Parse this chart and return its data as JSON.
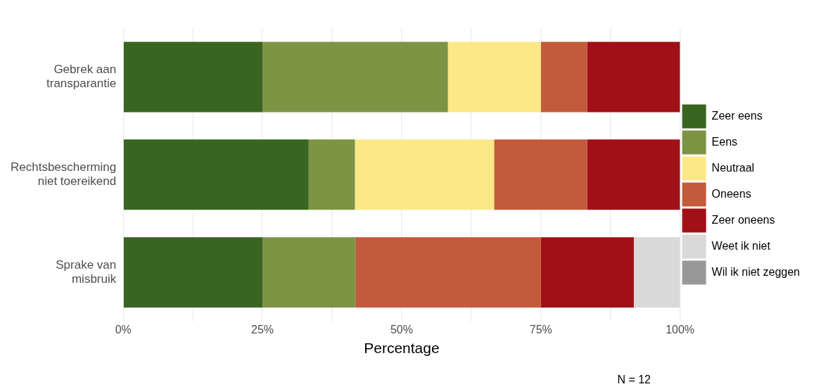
{
  "chart_data": {
    "type": "bar",
    "orientation": "horizontal",
    "stacked": true,
    "categories": [
      "Gebrek aan transparantie",
      "Rechtsbescherming niet toereikend",
      "Sprake van misbruik"
    ],
    "series": [
      {
        "name": "Zeer eens",
        "color": "#38651f",
        "values": [
          25,
          33.3,
          25
        ]
      },
      {
        "name": "Eens",
        "color": "#7d9445",
        "values": [
          33.3,
          8.3,
          16.7
        ]
      },
      {
        "name": "Neutraal",
        "color": "#fde888",
        "values": [
          16.7,
          25,
          0
        ]
      },
      {
        "name": "Oneens",
        "color": "#c35a3b",
        "values": [
          8.3,
          16.7,
          33.3
        ]
      },
      {
        "name": "Zeer oneens",
        "color": "#a01016",
        "values": [
          16.7,
          16.7,
          16.7
        ]
      },
      {
        "name": "Weet ik niet",
        "color": "#d9d9d9",
        "values": [
          0,
          0,
          8.3
        ]
      },
      {
        "name": "Wil ik niet zeggen",
        "color": "#999999",
        "values": [
          0,
          0,
          0
        ]
      }
    ],
    "xlabel": "Percentage",
    "xlim": [
      0,
      100
    ],
    "xticks": [
      {
        "value": 0,
        "label": "0%"
      },
      {
        "value": 12.5,
        "label": null
      },
      {
        "value": 25,
        "label": "25%"
      },
      {
        "value": 37.5,
        "label": null
      },
      {
        "value": 50,
        "label": "50%"
      },
      {
        "value": 62.5,
        "label": null
      },
      {
        "value": 75,
        "label": "75%"
      },
      {
        "value": 87.5,
        "label": null
      },
      {
        "value": 100,
        "label": "100%"
      }
    ],
    "grid": "x",
    "legend": "right",
    "annotations": [
      "N = 12"
    ]
  }
}
